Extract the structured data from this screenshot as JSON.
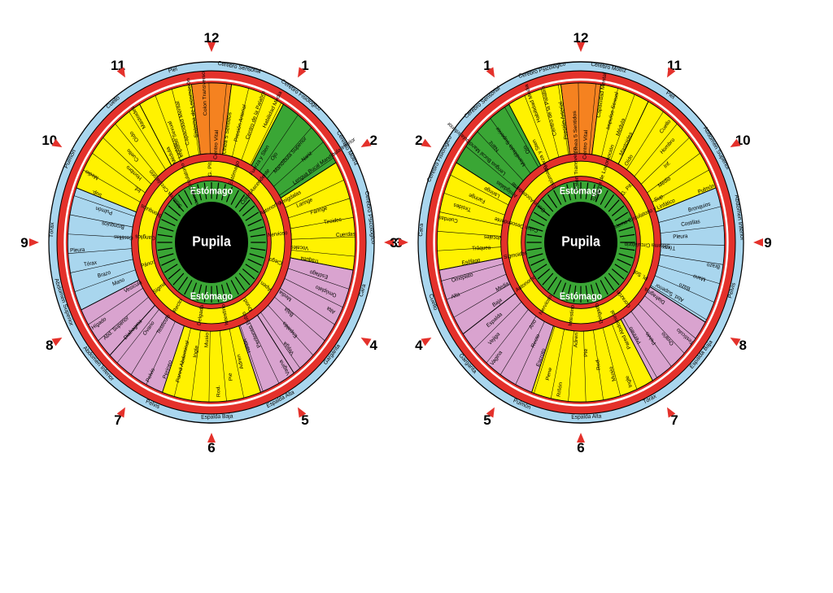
{
  "colors": {
    "red": "#e4312b",
    "yellow": "#fff200",
    "green": "#3aa635",
    "blue": "#a9d6ee",
    "pink": "#d9a3cf",
    "orange": "#f58220",
    "black": "#000000",
    "white": "#ffffff"
  },
  "pupil_label": "Pupila",
  "clock_numbers": [
    "12",
    "1",
    "2",
    "3",
    "4",
    "5",
    "6",
    "7",
    "8",
    "9",
    "10",
    "11"
  ],
  "left_iris": {
    "outer_labels": [
      "Cerebro Sensorial",
      "Cerebro Fisiológico",
      "Cerebro Motriz",
      "Cerebro Psicológico",
      "Cara",
      "Garganta",
      "Espalda Alta",
      "Espalda Baja",
      "Pelvis",
      "Abdomen Inferior",
      "Abdomen Superior",
      "Tórax",
      "Pulmón",
      "Cuello",
      "Piel"
    ],
    "regions": [
      "Centro Vital",
      "Línea 5 Sentidos",
      "Presión Arterial",
      "Centro de la Palabra",
      "Habilidad Media",
      "Fuerza y Sten",
      "Ojo",
      "Mandíbula Superior",
      "Nariz",
      "Lengua Bucal Mandíbula Inferior",
      "Amígdalas",
      "Laringe",
      "Faringe",
      "Tiroides",
      "Cuerdas",
      "Vocales",
      "Tráquea",
      "Esófago",
      "Omóplato",
      "Alta",
      "Media",
      "Baja",
      "Espalda",
      "Vejiga",
      "Vagina",
      "Peritoneo Pubis",
      "Riñón",
      "Adren",
      "Pie",
      "Rod.",
      "Musio",
      "Ingle",
      "Pared Abdominal",
      "Perineo",
      "Pelvis",
      "Testículo",
      "Ovario",
      "Diafragma",
      "Abd. Superior",
      "Hígado",
      "Vesícula",
      "Mano",
      "Brazo",
      "Tórax",
      "Pleura",
      "Costillas",
      "Bronquios",
      "Pulmón",
      "Sup.",
      "Medio",
      "Inf.",
      "Hombro",
      "Cuello",
      "Oído",
      "Mastoides",
      "Médula",
      "Impulso Sexual",
      "Capacidad Mental",
      "Sistema de Locomoción",
      "Colon Transverso",
      "Estómago",
      "Colon Ascendente",
      "Autonomo",
      "Nervioso",
      "Ciego",
      "Apen.",
      "Duod.",
      "Intestino",
      "Delgado",
      "Recto",
      "Sigma",
      "Páncr.",
      "Ganglios",
      "Bronquios",
      "Sistema Circulatorio",
      "Sistema Circulatorio y Linfático",
      "G. Pit."
    ]
  },
  "right_iris": {
    "outer_labels": [
      "Cerebro Motriz",
      "Cerebro Psicológico",
      "Cerebro Sensorial",
      "Cerebro Fisiológico",
      "Cara",
      "Cuello",
      "Garganta",
      "Pulmón",
      "Espalda Alta",
      "Tórax",
      "Espalda Baja",
      "Pelvis",
      "Abdomen Inferior",
      "Abdomen Superior",
      "Piel"
    ],
    "regions": [
      "Centro Vital",
      "Línea 5 Sentidos",
      "Presión Arterial",
      "Centro de la Palabra",
      "Habilidad Media",
      "Fuerza y Sten",
      "Ojo",
      "Mandíbula Superior",
      "Nariz",
      "Lengua Bucal Mandíbula Inferior",
      "Amígdalas",
      "Laringe",
      "Faringe",
      "Tiroides",
      "Cuerdas",
      "Vocales",
      "Tráquea",
      "Esófago",
      "Omóplato",
      "Alta",
      "Media",
      "Baja",
      "Espalda",
      "Vejiga",
      "Vagina",
      "Ano",
      "Recto",
      "Escroto",
      "Pene",
      "Riñón",
      "Adren",
      "Pie",
      "Rod.",
      "Musio",
      "Ingle",
      "Pared Abdominal",
      "Perineo",
      "Pelvis",
      "Ovario",
      "Testículo",
      "Diafragma",
      "Abd. Superior",
      "Bazo",
      "Mano",
      "Brazo",
      "Tórax",
      "Pleura",
      "Costillas",
      "Bronquios",
      "Pulmón",
      "Sup.",
      "Medio",
      "Inf.",
      "Hombro",
      "Cuello",
      "Oído",
      "Mastoides",
      "Médula",
      "Impulso Sexual",
      "Capacidad Mental",
      "Sistema de Locomoción",
      "Colon Transverso",
      "Estómago",
      "Colon Ascendente",
      "Colon Descendente",
      "Sigmoides",
      "Autonomo",
      "Nervioso",
      "Intestino",
      "Delgado",
      "Corazón",
      "Pl. Sol.",
      "Sistema Circulatorio",
      "Sistema Circulatorio y Linfático",
      "G. Pit."
    ]
  }
}
